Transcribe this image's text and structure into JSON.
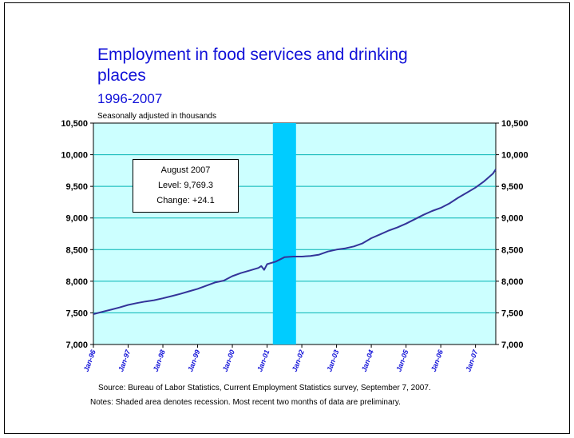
{
  "title": "Employment in food services and drinking places",
  "subtitle": "1996-2007",
  "units_note": "Seasonally adjusted in thousands",
  "infobox": {
    "heading": "August 2007",
    "level": "Level: 9,769.3",
    "change": "Change: +24.1"
  },
  "source": "Source:  Bureau of Labor Statistics, Current Employment Statistics survey, September 7, 2007.",
  "notes": "Notes:  Shaded area denotes recession.  Most recent two months of data are preliminary.",
  "colors": {
    "plot_background": "#ccffff",
    "recession": "#00ccff",
    "line": "#333399",
    "gridline": "#00b3b3",
    "title": "#1010d8"
  },
  "chart_data": {
    "type": "line",
    "title": "Employment in food services and drinking places",
    "ylim": [
      7000,
      10500
    ],
    "yticks": [
      7000,
      7500,
      8000,
      8500,
      9000,
      9500,
      10000,
      10500
    ],
    "ytick_labels": [
      "7,000",
      "7,500",
      "8,000",
      "8,500",
      "9,000",
      "9,500",
      "10,000",
      "10,500"
    ],
    "xlim": [
      "1996-01",
      "2007-08"
    ],
    "xtick_labels": [
      "Jan-96",
      "Jan-97",
      "Jan-98",
      "Jan-99",
      "Jan-00",
      "Jan-01",
      "Jan-02",
      "Jan-03",
      "Jan-04",
      "Jan-05",
      "Jan-06",
      "Jan-07"
    ],
    "grid": true,
    "recession": {
      "start": "2001-03",
      "end": "2001-11"
    },
    "series": [
      {
        "values": [
          [
            "1996-01",
            7480
          ],
          [
            "1996-04",
            7515
          ],
          [
            "1996-07",
            7550
          ],
          [
            "1996-10",
            7585
          ],
          [
            "1997-01",
            7625
          ],
          [
            "1997-04",
            7655
          ],
          [
            "1997-07",
            7680
          ],
          [
            "1997-10",
            7700
          ],
          [
            "1998-01",
            7730
          ],
          [
            "1998-04",
            7765
          ],
          [
            "1998-07",
            7800
          ],
          [
            "1998-10",
            7840
          ],
          [
            "1999-01",
            7880
          ],
          [
            "1999-04",
            7930
          ],
          [
            "1999-07",
            7980
          ],
          [
            "1999-10",
            8010
          ],
          [
            "2000-01",
            8080
          ],
          [
            "2000-04",
            8130
          ],
          [
            "2000-07",
            8170
          ],
          [
            "2000-10",
            8210
          ],
          [
            "2000-11",
            8240
          ],
          [
            "2000-12",
            8180
          ],
          [
            "2001-01",
            8270
          ],
          [
            "2001-04",
            8310
          ],
          [
            "2001-07",
            8380
          ],
          [
            "2001-10",
            8390
          ],
          [
            "2002-01",
            8390
          ],
          [
            "2002-04",
            8400
          ],
          [
            "2002-07",
            8420
          ],
          [
            "2002-10",
            8470
          ],
          [
            "2003-01",
            8500
          ],
          [
            "2003-04",
            8520
          ],
          [
            "2003-07",
            8550
          ],
          [
            "2003-10",
            8600
          ],
          [
            "2004-01",
            8680
          ],
          [
            "2004-04",
            8740
          ],
          [
            "2004-07",
            8800
          ],
          [
            "2004-10",
            8850
          ],
          [
            "2005-01",
            8910
          ],
          [
            "2005-04",
            8980
          ],
          [
            "2005-07",
            9050
          ],
          [
            "2005-10",
            9110
          ],
          [
            "2006-01",
            9160
          ],
          [
            "2006-04",
            9230
          ],
          [
            "2006-07",
            9320
          ],
          [
            "2006-10",
            9400
          ],
          [
            "2007-01",
            9480
          ],
          [
            "2007-04",
            9580
          ],
          [
            "2007-07",
            9700
          ],
          [
            "2007-08",
            9769.3
          ]
        ]
      }
    ]
  }
}
